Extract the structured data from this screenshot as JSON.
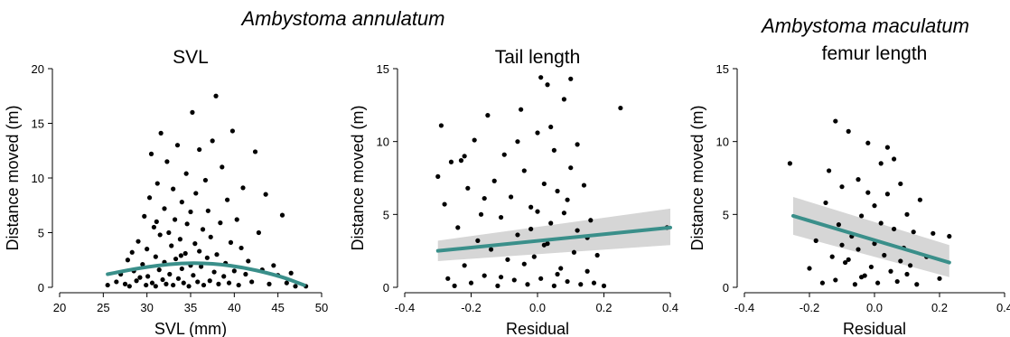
{
  "figure": {
    "species_left": "Ambystoma annulatum",
    "species_right": "Ambystoma maculatum",
    "colors": {
      "fit_line": "#3a8f8a",
      "ci_band": "#d6d6d6",
      "points": "#000000"
    }
  },
  "chart_data": [
    {
      "type": "scatter",
      "title": "SVL",
      "xlabel": "SVL (mm)",
      "ylabel": "Distance moved (m)",
      "xlim": [
        20,
        50
      ],
      "ylim": [
        0,
        20
      ],
      "xticks": [
        "20",
        "25",
        "30",
        "35",
        "40",
        "45",
        "50"
      ],
      "yticks": [
        "0",
        "5",
        "10",
        "15",
        "20"
      ],
      "fit": {
        "type": "quadratic",
        "points": [
          [
            25.5,
            1.2
          ],
          [
            30,
            1.9
          ],
          [
            35,
            2.3
          ],
          [
            40,
            2.0
          ],
          [
            45,
            1.1
          ],
          [
            48,
            0.2
          ]
        ],
        "ci": false
      },
      "points": [
        [
          25.5,
          0.2
        ],
        [
          26.5,
          0.5
        ],
        [
          27,
          1.2
        ],
        [
          27.5,
          0.3
        ],
        [
          27.8,
          2.5
        ],
        [
          28,
          0.1
        ],
        [
          28.3,
          3.2
        ],
        [
          28.5,
          1.5
        ],
        [
          28.8,
          0.6
        ],
        [
          29,
          4.2
        ],
        [
          29.2,
          0.9
        ],
        [
          29.5,
          2.1
        ],
        [
          29.7,
          6.5
        ],
        [
          29.9,
          0.2
        ],
        [
          30,
          3.5
        ],
        [
          30.1,
          1.0
        ],
        [
          30.3,
          8.2
        ],
        [
          30.5,
          12.2
        ],
        [
          30.6,
          0.4
        ],
        [
          30.8,
          5.5
        ],
        [
          31,
          2.8
        ],
        [
          31,
          0.1
        ],
        [
          31.2,
          9.5
        ],
        [
          31.4,
          1.6
        ],
        [
          31.5,
          4.8
        ],
        [
          31.6,
          14.1
        ],
        [
          31.8,
          0.7
        ],
        [
          32,
          7.2
        ],
        [
          32,
          2.3
        ],
        [
          32.2,
          0.3
        ],
        [
          32.3,
          11.5
        ],
        [
          32.5,
          5.0
        ],
        [
          32.6,
          1.2
        ],
        [
          32.8,
          3.8
        ],
        [
          33,
          0.2
        ],
        [
          33,
          9.0
        ],
        [
          33.2,
          6.2
        ],
        [
          33.3,
          2.6
        ],
        [
          33.5,
          13.0
        ],
        [
          33.6,
          0.8
        ],
        [
          33.8,
          4.4
        ],
        [
          34,
          1.7
        ],
        [
          34,
          7.8
        ],
        [
          34.2,
          0.4
        ],
        [
          34.4,
          3.1
        ],
        [
          34.5,
          10.4
        ],
        [
          34.6,
          5.8
        ],
        [
          34.8,
          0.1
        ],
        [
          35,
          2.0
        ],
        [
          35,
          6.9
        ],
        [
          35.2,
          16.0
        ],
        [
          35.3,
          1.1
        ],
        [
          35.5,
          4.0
        ],
        [
          35.6,
          8.6
        ],
        [
          35.8,
          0.5
        ],
        [
          36,
          3.3
        ],
        [
          36,
          12.6
        ],
        [
          36.2,
          1.9
        ],
        [
          36.4,
          5.3
        ],
        [
          36.5,
          0.2
        ],
        [
          36.7,
          9.8
        ],
        [
          36.9,
          2.7
        ],
        [
          37,
          7.0
        ],
        [
          37.2,
          0.6
        ],
        [
          37.3,
          4.6
        ],
        [
          37.5,
          13.4
        ],
        [
          37.7,
          1.4
        ],
        [
          37.9,
          17.5
        ],
        [
          38,
          3.0
        ],
        [
          38.2,
          0.3
        ],
        [
          38.4,
          5.9
        ],
        [
          38.6,
          11.0
        ],
        [
          38.8,
          1.0
        ],
        [
          39,
          2.2
        ],
        [
          39.2,
          8.0
        ],
        [
          39.4,
          0.4
        ],
        [
          39.6,
          4.1
        ],
        [
          39.8,
          14.3
        ],
        [
          40,
          1.5
        ],
        [
          40.3,
          6.2
        ],
        [
          40.5,
          0.2
        ],
        [
          40.8,
          3.6
        ],
        [
          41,
          9.1
        ],
        [
          41.3,
          1.2
        ],
        [
          41.6,
          2.4
        ],
        [
          42,
          0.5
        ],
        [
          42.4,
          12.4
        ],
        [
          42.8,
          5.0
        ],
        [
          43.2,
          1.6
        ],
        [
          43.6,
          8.5
        ],
        [
          44,
          0.3
        ],
        [
          44.5,
          2.0
        ],
        [
          45,
          1.1
        ],
        [
          45.5,
          6.6
        ],
        [
          46,
          0.4
        ],
        [
          46.5,
          1.3
        ],
        [
          47,
          0.1
        ],
        [
          48.2,
          0.1
        ],
        [
          31.1,
          6.0
        ],
        [
          33.9,
          2.9
        ]
      ]
    },
    {
      "type": "scatter",
      "title": "Tail length",
      "xlabel": "Residual",
      "ylabel": "Distance moved (m)",
      "xlim": [
        -0.4,
        0.4
      ],
      "ylim": [
        0,
        15
      ],
      "xticks": [
        "-0.4",
        "-0.2",
        "0.0",
        "0.2",
        "0.4"
      ],
      "yticks": [
        "0",
        "5",
        "10",
        "15"
      ],
      "fit": {
        "type": "linear",
        "points": [
          [
            -0.3,
            2.5
          ],
          [
            0.4,
            4.1
          ]
        ],
        "ci": true,
        "ci_start": [
          1.8,
          3.2
        ],
        "ci_end": [
          2.9,
          5.4
        ]
      },
      "points": [
        [
          -0.3,
          7.6
        ],
        [
          -0.29,
          11.1
        ],
        [
          -0.28,
          5.7
        ],
        [
          -0.26,
          8.6
        ],
        [
          -0.25,
          0.1
        ],
        [
          -0.24,
          4.1
        ],
        [
          -0.23,
          8.7
        ],
        [
          -0.22,
          1.5
        ],
        [
          -0.21,
          6.8
        ],
        [
          -0.2,
          0.3
        ],
        [
          -0.19,
          10.1
        ],
        [
          -0.18,
          3.2
        ],
        [
          -0.17,
          5.0
        ],
        [
          -0.16,
          0.8
        ],
        [
          -0.15,
          11.8
        ],
        [
          -0.14,
          2.6
        ],
        [
          -0.13,
          7.3
        ],
        [
          -0.12,
          0.1
        ],
        [
          -0.11,
          4.8
        ],
        [
          -0.1,
          9.1
        ],
        [
          -0.09,
          1.9
        ],
        [
          -0.08,
          6.2
        ],
        [
          -0.07,
          0.5
        ],
        [
          -0.06,
          3.6
        ],
        [
          -0.05,
          12.2
        ],
        [
          -0.04,
          8.0
        ],
        [
          -0.03,
          0.2
        ],
        [
          -0.02,
          5.5
        ],
        [
          -0.01,
          2.1
        ],
        [
          0.0,
          10.6
        ],
        [
          0.01,
          14.4
        ],
        [
          0.01,
          0.6
        ],
        [
          0.02,
          7.1
        ],
        [
          0.03,
          13.9
        ],
        [
          0.03,
          3.0
        ],
        [
          0.04,
          4.4
        ],
        [
          0.05,
          9.4
        ],
        [
          0.05,
          0.1
        ],
        [
          0.06,
          6.6
        ],
        [
          0.07,
          1.3
        ],
        [
          0.08,
          12.9
        ],
        [
          0.08,
          5.1
        ],
        [
          0.09,
          0.4
        ],
        [
          0.1,
          14.3
        ],
        [
          0.1,
          8.2
        ],
        [
          0.11,
          2.4
        ],
        [
          0.12,
          3.9
        ],
        [
          0.13,
          0.2
        ],
        [
          0.14,
          7.0
        ],
        [
          0.15,
          1.1
        ],
        [
          0.16,
          4.6
        ],
        [
          0.17,
          0.3
        ],
        [
          0.18,
          2.2
        ],
        [
          0.2,
          0.1
        ],
        [
          0.25,
          12.3
        ],
        [
          0.39,
          4.1
        ],
        [
          -0.27,
          0.6
        ],
        [
          -0.22,
          9.0
        ],
        [
          -0.16,
          6.1
        ],
        [
          -0.11,
          0.7
        ],
        [
          -0.06,
          10.0
        ],
        [
          -0.02,
          4.0
        ],
        [
          0.02,
          2.9
        ],
        [
          0.06,
          0.9
        ],
        [
          0.09,
          6.0
        ],
        [
          0.12,
          9.8
        ],
        [
          0.15,
          3.4
        ],
        [
          -0.04,
          1.6
        ],
        [
          0.0,
          5.2
        ],
        [
          0.04,
          11.0
        ]
      ]
    },
    {
      "type": "scatter",
      "title": "femur length",
      "xlabel": "Residual",
      "ylabel": "Distance moved (m)",
      "xlim": [
        -0.4,
        0.4
      ],
      "ylim": [
        0,
        15
      ],
      "xticks": [
        "-0.4",
        "-0.2",
        "0.0",
        "0.2",
        "0.4"
      ],
      "yticks": [
        "0",
        "5",
        "10",
        "15"
      ],
      "fit": {
        "type": "linear",
        "points": [
          [
            -0.25,
            4.9
          ],
          [
            0.23,
            1.7
          ]
        ],
        "ci": true,
        "ci_start": [
          3.6,
          6.2
        ],
        "ci_end": [
          0.7,
          2.9
        ]
      },
      "points": [
        [
          -0.26,
          8.5
        ],
        [
          -0.2,
          1.3
        ],
        [
          -0.18,
          3.2
        ],
        [
          -0.16,
          0.3
        ],
        [
          -0.15,
          5.8
        ],
        [
          -0.14,
          8.0
        ],
        [
          -0.13,
          2.1
        ],
        [
          -0.12,
          11.4
        ],
        [
          -0.12,
          0.5
        ],
        [
          -0.11,
          4.3
        ],
        [
          -0.1,
          6.9
        ],
        [
          -0.09,
          1.7
        ],
        [
          -0.08,
          10.7
        ],
        [
          -0.07,
          3.5
        ],
        [
          -0.06,
          0.2
        ],
        [
          -0.05,
          7.4
        ],
        [
          -0.05,
          2.6
        ],
        [
          -0.04,
          4.9
        ],
        [
          -0.03,
          0.8
        ],
        [
          -0.02,
          9.9
        ],
        [
          -0.01,
          1.4
        ],
        [
          0.0,
          5.6
        ],
        [
          0.0,
          3.0
        ],
        [
          0.01,
          0.3
        ],
        [
          0.02,
          8.5
        ],
        [
          0.03,
          2.2
        ],
        [
          0.04,
          6.4
        ],
        [
          0.04,
          9.6
        ],
        [
          0.05,
          1.1
        ],
        [
          0.06,
          4.0
        ],
        [
          0.07,
          0.4
        ],
        [
          0.08,
          7.1
        ],
        [
          0.09,
          2.7
        ],
        [
          0.1,
          5.0
        ],
        [
          0.11,
          1.5
        ],
        [
          0.12,
          3.8
        ],
        [
          0.13,
          0.2
        ],
        [
          0.14,
          6.0
        ],
        [
          0.16,
          2.1
        ],
        [
          0.18,
          3.7
        ],
        [
          0.2,
          0.6
        ],
        [
          0.23,
          3.5
        ],
        [
          -0.08,
          1.9
        ],
        [
          -0.02,
          6.5
        ],
        [
          0.02,
          4.4
        ],
        [
          0.06,
          8.8
        ],
        [
          0.1,
          0.9
        ],
        [
          -0.1,
          2.9
        ],
        [
          -0.04,
          0.7
        ],
        [
          0.08,
          1.8
        ]
      ]
    }
  ]
}
